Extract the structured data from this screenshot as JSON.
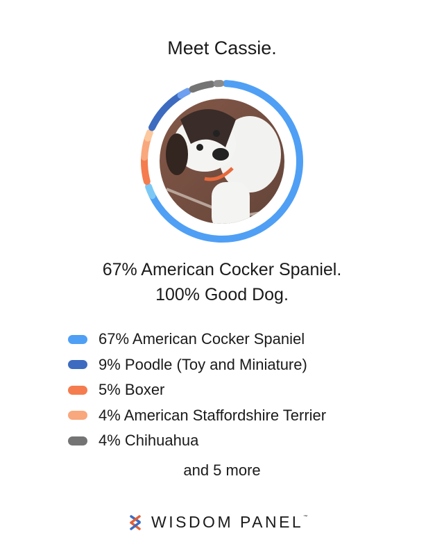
{
  "title": "Meet Cassie.",
  "headline": {
    "line1": "67% American Cocker Spaniel.",
    "line2": "100% Good Dog."
  },
  "breeds": [
    {
      "label": "67% American Cocker Spaniel",
      "percent": 67,
      "color": "#4f9ff5"
    },
    {
      "label": "9% Poodle (Toy and Miniature)",
      "percent": 9,
      "color": "#3d6bc0"
    },
    {
      "label": "5% Boxer",
      "percent": 5,
      "color": "#f47c4e"
    },
    {
      "label": "4% American Staffordshire Terrier",
      "percent": 4,
      "color": "#f9a77c"
    },
    {
      "label": "4% Chihuahua",
      "percent": 4,
      "color": "#747474"
    }
  ],
  "more": "and 5 more",
  "brand": {
    "name": "WISDOM PANEL",
    "tm": "™"
  },
  "photo": {
    "subject": "dog-photo"
  }
}
